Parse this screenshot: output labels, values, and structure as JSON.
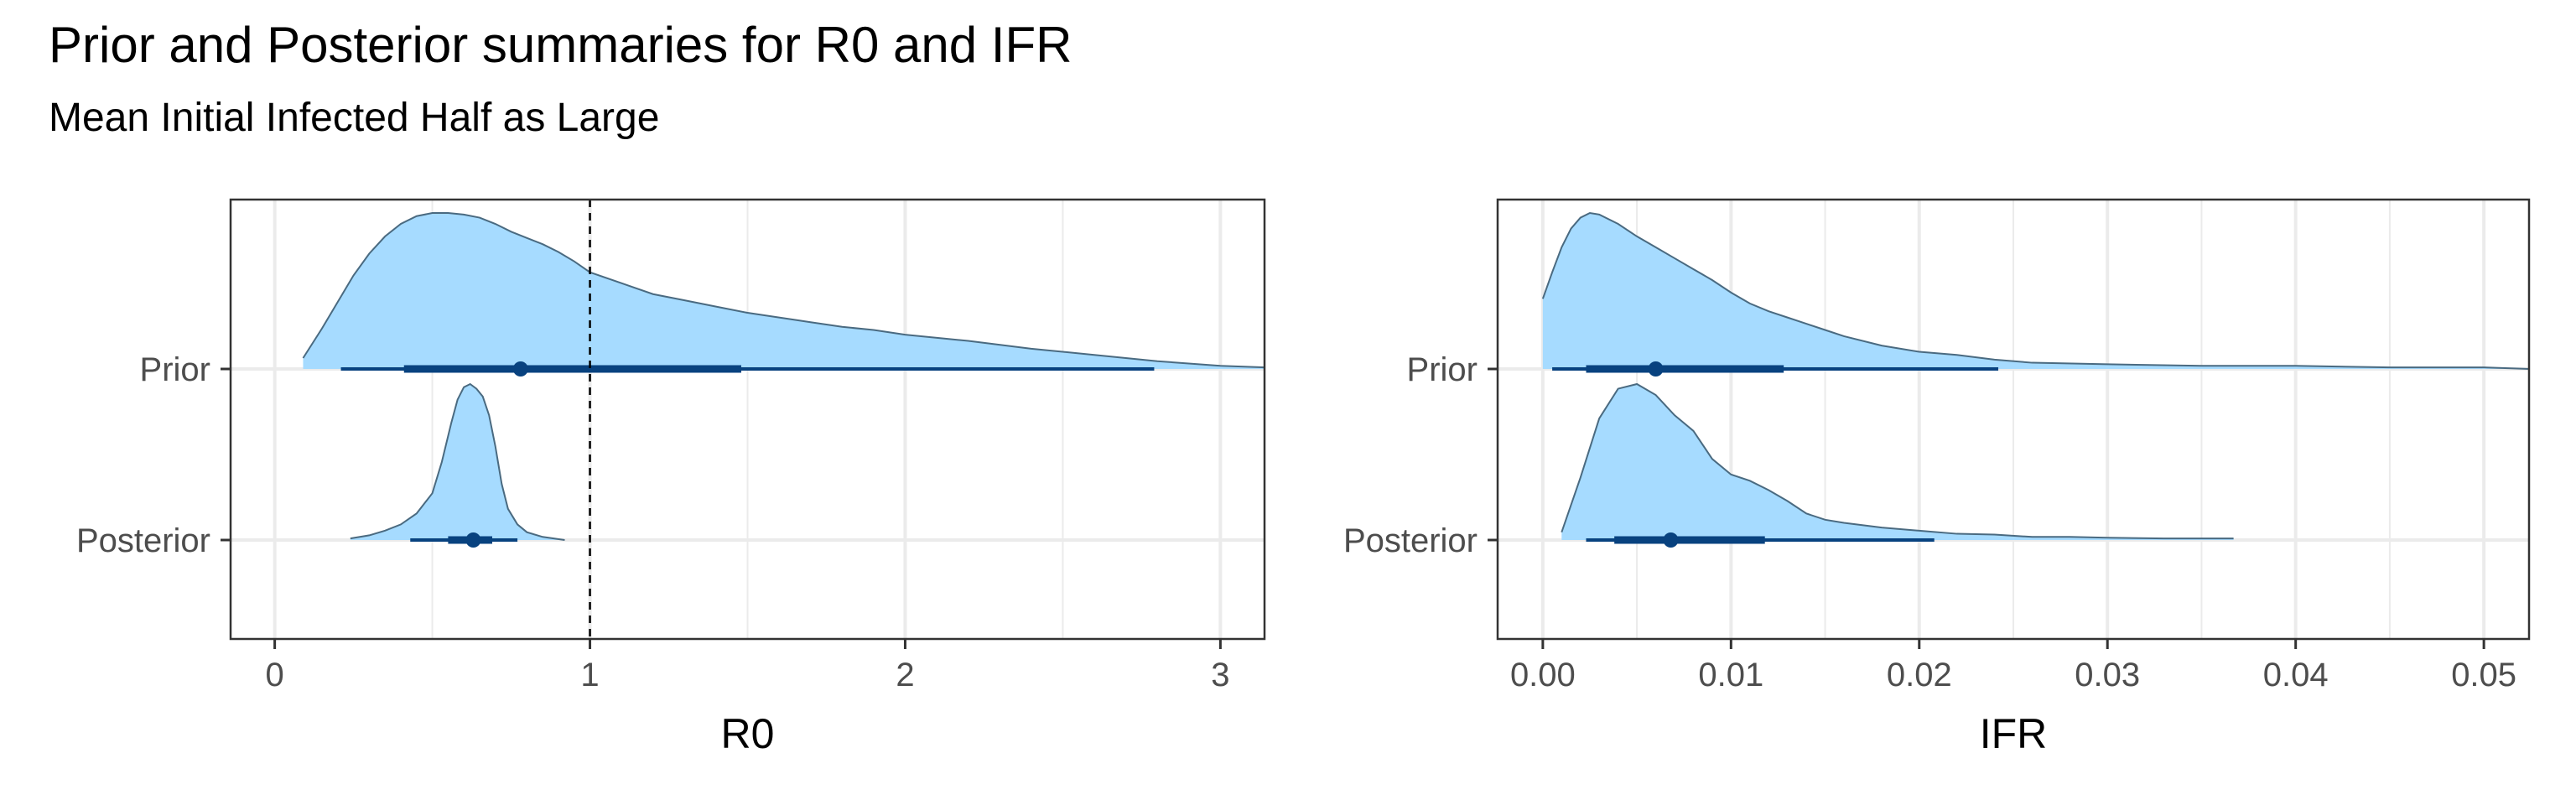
{
  "title": "Prior and Posterior summaries for R0 and IFR",
  "subtitle": "Mean Initial Infected Half as Large",
  "colors": {
    "density_fill": "#a6dbff",
    "density_line": "#4a6a80",
    "interval": "#08427f",
    "grid": "#ebebeb",
    "reference_line": "#000000"
  },
  "chart_data": [
    {
      "type": "area",
      "chart_kind": "halfeye",
      "xlabel": "R0",
      "xlim": [
        -0.14,
        3.14
      ],
      "xticks": [
        0,
        1,
        2,
        3
      ],
      "xtick_labels": [
        "0",
        "1",
        "2",
        "3"
      ],
      "categories": [
        "Prior",
        "Posterior"
      ],
      "reference_line": 1,
      "series": [
        {
          "name": "Prior",
          "density": {
            "x": [
              0.09,
              0.15,
              0.2,
              0.25,
              0.3,
              0.35,
              0.4,
              0.45,
              0.5,
              0.55,
              0.6,
              0.65,
              0.7,
              0.75,
              0.8,
              0.85,
              0.9,
              0.95,
              1.0,
              1.1,
              1.2,
              1.3,
              1.4,
              1.5,
              1.6,
              1.7,
              1.8,
              1.9,
              2.0,
              2.2,
              2.4,
              2.6,
              2.8,
              3.0,
              3.14
            ],
            "y": [
              0.07,
              0.26,
              0.43,
              0.6,
              0.74,
              0.85,
              0.93,
              0.98,
              1.0,
              1.0,
              0.99,
              0.97,
              0.93,
              0.88,
              0.84,
              0.8,
              0.75,
              0.69,
              0.62,
              0.55,
              0.48,
              0.44,
              0.4,
              0.36,
              0.33,
              0.3,
              0.27,
              0.25,
              0.22,
              0.18,
              0.13,
              0.09,
              0.05,
              0.02,
              0.01
            ]
          },
          "point": 0.78,
          "interval_66": [
            0.41,
            1.48
          ],
          "interval_95": [
            0.21,
            2.79
          ]
        },
        {
          "name": "Posterior",
          "density": {
            "x": [
              0.24,
              0.3,
              0.35,
              0.4,
              0.45,
              0.5,
              0.53,
              0.56,
              0.58,
              0.6,
              0.62,
              0.64,
              0.66,
              0.68,
              0.7,
              0.72,
              0.74,
              0.77,
              0.8,
              0.85,
              0.92
            ],
            "y": [
              0.01,
              0.03,
              0.06,
              0.1,
              0.17,
              0.3,
              0.5,
              0.75,
              0.9,
              0.98,
              1.0,
              0.97,
              0.92,
              0.8,
              0.6,
              0.36,
              0.2,
              0.1,
              0.05,
              0.02,
              0.0
            ]
          },
          "point": 0.63,
          "interval_66": [
            0.55,
            0.69
          ],
          "interval_95": [
            0.43,
            0.77
          ]
        }
      ]
    },
    {
      "type": "area",
      "chart_kind": "halfeye",
      "xlabel": "IFR",
      "xlim": [
        -0.0024,
        0.0524
      ],
      "xticks": [
        0.0,
        0.01,
        0.02,
        0.03,
        0.04,
        0.05
      ],
      "xtick_labels": [
        "0.00",
        "0.01",
        "0.02",
        "0.03",
        "0.04",
        "0.05"
      ],
      "categories": [
        "Prior",
        "Posterior"
      ],
      "series": [
        {
          "name": "Prior",
          "density": {
            "x": [
              0.0,
              0.0005,
              0.001,
              0.0015,
              0.002,
              0.0025,
              0.003,
              0.004,
              0.005,
              0.006,
              0.007,
              0.008,
              0.009,
              0.01,
              0.011,
              0.012,
              0.013,
              0.014,
              0.015,
              0.016,
              0.018,
              0.02,
              0.022,
              0.024,
              0.026,
              0.03,
              0.035,
              0.04,
              0.045,
              0.05,
              0.0524
            ],
            "y": [
              0.45,
              0.62,
              0.78,
              0.9,
              0.97,
              1.0,
              0.99,
              0.93,
              0.85,
              0.78,
              0.71,
              0.64,
              0.57,
              0.49,
              0.42,
              0.37,
              0.33,
              0.29,
              0.25,
              0.21,
              0.15,
              0.11,
              0.09,
              0.06,
              0.04,
              0.03,
              0.02,
              0.02,
              0.01,
              0.01,
              0.0
            ]
          },
          "point": 0.006,
          "interval_66": [
            0.0023,
            0.0128
          ],
          "interval_95": [
            0.0005,
            0.0242
          ]
        },
        {
          "name": "Posterior",
          "density": {
            "x": [
              0.001,
              0.002,
              0.003,
              0.004,
              0.005,
              0.006,
              0.007,
              0.008,
              0.009,
              0.01,
              0.011,
              0.012,
              0.013,
              0.014,
              0.015,
              0.016,
              0.018,
              0.02,
              0.022,
              0.024,
              0.026,
              0.028,
              0.03,
              0.033,
              0.0367
            ],
            "y": [
              0.05,
              0.4,
              0.78,
              0.97,
              1.0,
              0.93,
              0.8,
              0.7,
              0.52,
              0.42,
              0.38,
              0.32,
              0.25,
              0.17,
              0.13,
              0.11,
              0.08,
              0.06,
              0.04,
              0.035,
              0.02,
              0.02,
              0.015,
              0.01,
              0.01
            ]
          },
          "point": 0.0068,
          "interval_66": [
            0.0038,
            0.0118
          ],
          "interval_95": [
            0.0023,
            0.0208
          ]
        }
      ]
    }
  ]
}
